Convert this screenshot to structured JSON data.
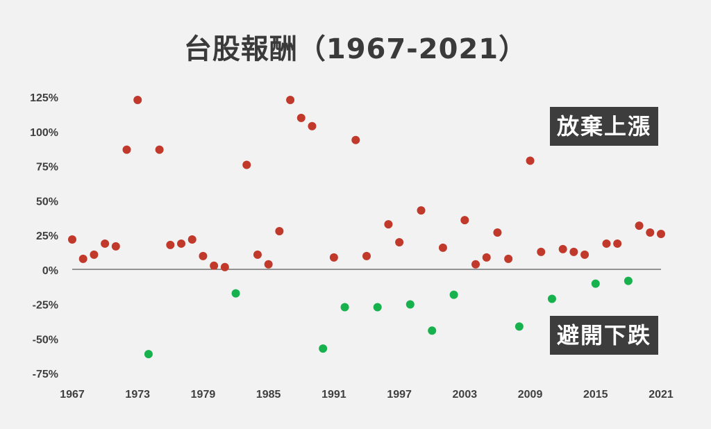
{
  "title": "台股報酬（1967-2021）",
  "annotations": {
    "up_label": "放棄上漲",
    "down_label": "避開下跌"
  },
  "colors": {
    "positive": "#c0392b",
    "negative": "#17b24d",
    "zero_line": "#333333",
    "background": "#f2f2f2"
  },
  "chart_data": {
    "type": "scatter",
    "title": "台股報酬（1967-2021）",
    "xlabel": "",
    "ylabel": "",
    "xlim": [
      1967,
      2021
    ],
    "ylim": [
      -75,
      125
    ],
    "x_ticks": [
      "1967",
      "1973",
      "1979",
      "1985",
      "1991",
      "1997",
      "2003",
      "2009",
      "2015",
      "2021"
    ],
    "y_ticks": [
      "125%",
      "100%",
      "75%",
      "50%",
      "25%",
      "0%",
      "-25%",
      "-50%",
      "-75%"
    ],
    "y_tick_values": [
      125,
      100,
      75,
      50,
      25,
      0,
      -25,
      -50,
      -75
    ],
    "grid": false,
    "points": [
      {
        "x": 1967,
        "y": 22
      },
      {
        "x": 1968,
        "y": 8
      },
      {
        "x": 1969,
        "y": 11
      },
      {
        "x": 1970,
        "y": 19
      },
      {
        "x": 1971,
        "y": 17
      },
      {
        "x": 1972,
        "y": 87
      },
      {
        "x": 1973,
        "y": 123
      },
      {
        "x": 1974,
        "y": -61
      },
      {
        "x": 1975,
        "y": 87
      },
      {
        "x": 1976,
        "y": 18
      },
      {
        "x": 1977,
        "y": 19
      },
      {
        "x": 1978,
        "y": 22
      },
      {
        "x": 1979,
        "y": 10
      },
      {
        "x": 1980,
        "y": 3
      },
      {
        "x": 1981,
        "y": 2
      },
      {
        "x": 1982,
        "y": -17
      },
      {
        "x": 1983,
        "y": 76
      },
      {
        "x": 1984,
        "y": 11
      },
      {
        "x": 1985,
        "y": 4
      },
      {
        "x": 1986,
        "y": 28
      },
      {
        "x": 1987,
        "y": 123
      },
      {
        "x": 1988,
        "y": 110
      },
      {
        "x": 1989,
        "y": 104
      },
      {
        "x": 1990,
        "y": -57
      },
      {
        "x": 1991,
        "y": 9
      },
      {
        "x": 1992,
        "y": -27
      },
      {
        "x": 1993,
        "y": 94
      },
      {
        "x": 1994,
        "y": 10
      },
      {
        "x": 1995,
        "y": -27
      },
      {
        "x": 1996,
        "y": 33
      },
      {
        "x": 1997,
        "y": 20
      },
      {
        "x": 1998,
        "y": -25
      },
      {
        "x": 1999,
        "y": 43
      },
      {
        "x": 2000,
        "y": -44
      },
      {
        "x": 2001,
        "y": 16
      },
      {
        "x": 2002,
        "y": -18
      },
      {
        "x": 2003,
        "y": 36
      },
      {
        "x": 2004,
        "y": 4
      },
      {
        "x": 2005,
        "y": 9
      },
      {
        "x": 2006,
        "y": 27
      },
      {
        "x": 2007,
        "y": 8
      },
      {
        "x": 2008,
        "y": -41
      },
      {
        "x": 2009,
        "y": 79
      },
      {
        "x": 2010,
        "y": 13
      },
      {
        "x": 2011,
        "y": -21
      },
      {
        "x": 2012,
        "y": 15
      },
      {
        "x": 2013,
        "y": 13
      },
      {
        "x": 2014,
        "y": 11
      },
      {
        "x": 2015,
        "y": -10
      },
      {
        "x": 2016,
        "y": 19
      },
      {
        "x": 2017,
        "y": 19
      },
      {
        "x": 2018,
        "y": -8
      },
      {
        "x": 2019,
        "y": 32
      },
      {
        "x": 2020,
        "y": 27
      },
      {
        "x": 2021,
        "y": 26
      }
    ]
  }
}
